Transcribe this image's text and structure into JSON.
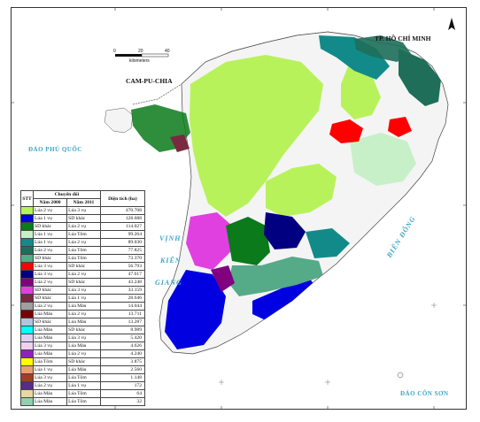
{
  "labels": {
    "hcm": "TP. HỒ CHÍ MINH",
    "cambodia": "CAM-PU-CHIA",
    "phu_quoc": "ĐẢO PHÚ QUỐC",
    "gulf_1": "VỊNH",
    "gulf_2": "KIÊN",
    "gulf_3": "GIANG",
    "east_sea": "BIỂN ĐÔNG",
    "con_son": "ĐẢO CÔN SƠN"
  },
  "scale": {
    "ticks": [
      "0",
      "20",
      "40"
    ],
    "unit": "kilometers"
  },
  "legend": {
    "header_group": "Chuyển đổi",
    "col_stt": "STT",
    "col_2000": "Năm 2000",
    "col_2011": "Năm 2011",
    "col_area": "Diện tích (ha)",
    "rows": [
      {
        "color": "#b8f25a",
        "from": "Lúa 2 vụ",
        "to": "Lúa 3 vụ",
        "area": "470.708"
      },
      {
        "color": "#0000e0",
        "from": "Lúa 1 vụ",
        "to": "SD khác",
        "area": "128.688"
      },
      {
        "color": "#0a7a1a",
        "from": "SD khác",
        "to": "Lúa 2 vụ",
        "area": "114.027"
      },
      {
        "color": "#c8f0c8",
        "from": "Lúa 1 vụ",
        "to": "Lúa Tôm",
        "area": "99.264"
      },
      {
        "color": "#138a8a",
        "from": "Lúa 1 vụ",
        "to": "Lúa 2 vụ",
        "area": "89.030"
      },
      {
        "color": "#1e6e5a",
        "from": "Lúa 2 vụ",
        "to": "Lúa Tôm",
        "area": "77.825"
      },
      {
        "color": "#55aa88",
        "from": "SD khác",
        "to": "Lúa Tôm",
        "area": "73.370"
      },
      {
        "color": "#ff0000",
        "from": "Lúa 3 vụ",
        "to": "SD khác",
        "area": "56.793"
      },
      {
        "color": "#000080",
        "from": "Lúa 3 vụ",
        "to": "Lúa 2 vụ",
        "area": "47.617"
      },
      {
        "color": "#800080",
        "from": "Lúa 2 vụ",
        "to": "SD khác",
        "area": "43.248"
      },
      {
        "color": "#e040e0",
        "from": "SD khác",
        "to": "Lúa 3 vụ",
        "area": "33.159"
      },
      {
        "color": "#7a2a40",
        "from": "SD khác",
        "to": "Lúa 1 vụ",
        "area": "28.646"
      },
      {
        "color": "#a0a0a0",
        "from": "Lúa 2 vụ",
        "to": "Lúa Màu",
        "area": "14.044"
      },
      {
        "color": "#7a0000",
        "from": "Lúa Màu",
        "to": "Lúa 2 vụ",
        "area": "13.711"
      },
      {
        "color": "#b0c4de",
        "from": "SD khác",
        "to": "Lúa Màu",
        "area": "13.287"
      },
      {
        "color": "#00ffff",
        "from": "Lúa Màu",
        "to": "SD khác",
        "area": "8.989"
      },
      {
        "color": "#dcd0f0",
        "from": "Lúa Màu",
        "to": "Lúa 3 vụ",
        "area": "5.420"
      },
      {
        "color": "#f0d0f0",
        "from": "Lúa 3 vụ",
        "to": "Lúa Màu",
        "area": "4.626"
      },
      {
        "color": "#9020c0",
        "from": "Lúa Màu",
        "to": "Lúa 2 vụ",
        "area": "4.240"
      },
      {
        "color": "#ffff00",
        "from": "Lúa Tôm",
        "to": "SD khác",
        "area": "3.875"
      },
      {
        "color": "#e8a070",
        "from": "Lúa 1 vụ",
        "to": "Lúa Màu",
        "area": "2.560"
      },
      {
        "color": "#a04020",
        "from": "Lúa 3 vụ",
        "to": "Lúa Tôm",
        "area": "1.148"
      },
      {
        "color": "#5a2a8a",
        "from": "Lúa 2 vụ",
        "to": "Lúa 1 vụ",
        "area": "172"
      },
      {
        "color": "#e8d8a0",
        "from": "Lúa Màu",
        "to": "Lúa Tôm",
        "area": "64"
      },
      {
        "color": "#8fd0b0",
        "from": "Lúa Màu",
        "to": "Lúa Tôm",
        "area": "32"
      }
    ]
  }
}
